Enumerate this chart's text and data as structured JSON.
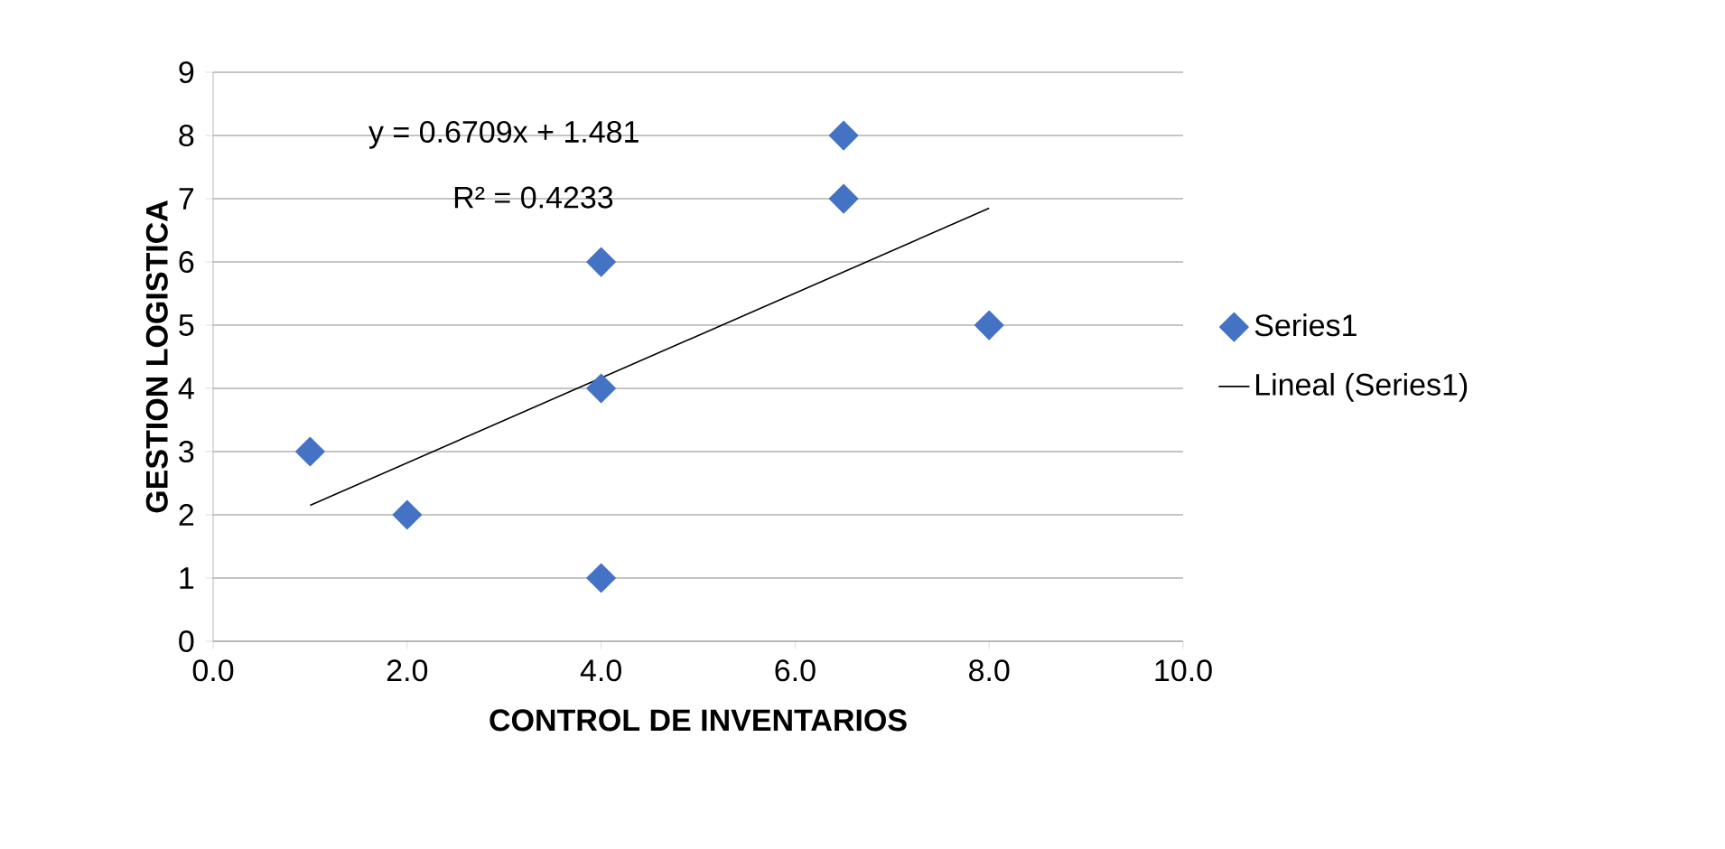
{
  "chart_data": {
    "type": "scatter",
    "xlabel": "CONTROL DE INVENTARIOS",
    "ylabel": "GESTION LOGISTICA",
    "annotations": [
      "y = 0.6709x + 1.481",
      "R² = 0.4233"
    ],
    "series": [
      {
        "name": "Series1",
        "color": "#4472c4",
        "marker": "diamond",
        "x": [
          1,
          2,
          4,
          4,
          4,
          6.5,
          6.5,
          8
        ],
        "values": [
          3,
          2,
          6,
          4,
          1,
          8,
          7,
          5
        ]
      },
      {
        "name": "Lineal (Series1)",
        "type": "line",
        "color": "#000000",
        "marker": "none",
        "x": [
          1,
          8
        ],
        "values": [
          2.15,
          6.85
        ]
      }
    ],
    "xlim": [
      0,
      10
    ],
    "ylim": [
      0,
      9
    ],
    "xticks": [
      {
        "value": 0,
        "label": "0.0"
      },
      {
        "value": 2,
        "label": "2.0"
      },
      {
        "value": 4,
        "label": "4.0"
      },
      {
        "value": 6,
        "label": "6.0"
      },
      {
        "value": 8,
        "label": "8.0"
      },
      {
        "value": 10,
        "label": "10.0"
      }
    ],
    "yticks": [
      0,
      1,
      2,
      3,
      4,
      5,
      6,
      7,
      8,
      9
    ],
    "grid": "y",
    "legend": "right"
  }
}
